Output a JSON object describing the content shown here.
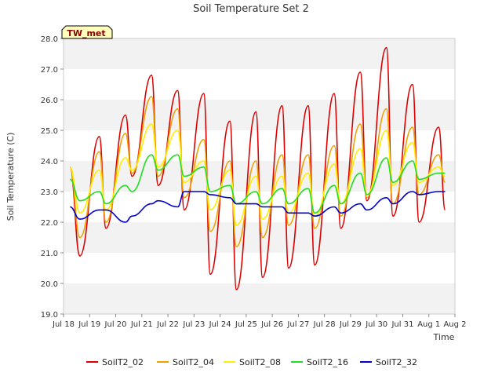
{
  "chart_data": {
    "type": "line",
    "title": "Soil Temperature Set 2",
    "xlabel": "Time",
    "ylabel": "Soil Temperature (C)",
    "station_badge": "TW_met",
    "ylim": [
      19.0,
      28.0
    ],
    "yticks": [
      "19.0",
      "20.0",
      "21.0",
      "22.0",
      "23.0",
      "24.0",
      "25.0",
      "26.0",
      "27.0",
      "28.0"
    ],
    "xlim": [
      "2024-07-18",
      "2024-08-02"
    ],
    "xticks": [
      "Jul 18",
      "Jul 19",
      "Jul 20",
      "Jul 21",
      "Jul 22",
      "Jul 23",
      "Jul 24",
      "Jul 25",
      "Jul 26",
      "Jul 27",
      "Jul 28",
      "Jul 29",
      "Jul 30",
      "Jul 31",
      "Aug 1",
      "Aug 2"
    ],
    "grid": "horizontal alternating bands",
    "legend_position": "bottom",
    "series": [
      {
        "name": "SoilT2_02",
        "color": "#dd0000",
        "points": [
          [
            "2024-07-18 06:00",
            23.8
          ],
          [
            "2024-07-18 15:00",
            20.9
          ],
          [
            "2024-07-19 09:00",
            24.8
          ],
          [
            "2024-07-19 15:00",
            21.8
          ],
          [
            "2024-07-20 09:00",
            25.5
          ],
          [
            "2024-07-20 15:00",
            23.5
          ],
          [
            "2024-07-21 09:00",
            26.8
          ],
          [
            "2024-07-21 15:00",
            23.2
          ],
          [
            "2024-07-22 09:00",
            26.3
          ],
          [
            "2024-07-22 15:00",
            22.4
          ],
          [
            "2024-07-23 09:00",
            26.2
          ],
          [
            "2024-07-23 15:00",
            20.3
          ],
          [
            "2024-07-24 09:00",
            25.3
          ],
          [
            "2024-07-24 15:00",
            19.8
          ],
          [
            "2024-07-25 09:00",
            25.6
          ],
          [
            "2024-07-25 15:00",
            20.2
          ],
          [
            "2024-07-26 09:00",
            25.8
          ],
          [
            "2024-07-26 15:00",
            20.5
          ],
          [
            "2024-07-27 09:00",
            25.8
          ],
          [
            "2024-07-27 15:00",
            20.6
          ],
          [
            "2024-07-28 09:00",
            26.2
          ],
          [
            "2024-07-28 15:00",
            21.8
          ],
          [
            "2024-07-29 09:00",
            26.9
          ],
          [
            "2024-07-29 15:00",
            22.7
          ],
          [
            "2024-07-30 09:00",
            27.7
          ],
          [
            "2024-07-30 15:00",
            22.2
          ],
          [
            "2024-07-31 09:00",
            26.5
          ],
          [
            "2024-07-31 15:00",
            22.0
          ],
          [
            "2024-08-01 09:00",
            25.1
          ],
          [
            "2024-08-01 15:00",
            22.4
          ]
        ]
      },
      {
        "name": "SoilT2_04",
        "color": "#f0a000",
        "points": [
          [
            "2024-07-18 06:00",
            23.8
          ],
          [
            "2024-07-18 15:00",
            21.5
          ],
          [
            "2024-07-19 09:00",
            24.3
          ],
          [
            "2024-07-19 15:00",
            22.0
          ],
          [
            "2024-07-20 09:00",
            24.9
          ],
          [
            "2024-07-20 15:00",
            23.6
          ],
          [
            "2024-07-21 09:00",
            26.1
          ],
          [
            "2024-07-21 15:00",
            23.5
          ],
          [
            "2024-07-22 09:00",
            25.7
          ],
          [
            "2024-07-22 15:00",
            22.8
          ],
          [
            "2024-07-23 09:00",
            24.7
          ],
          [
            "2024-07-23 15:00",
            21.7
          ],
          [
            "2024-07-24 09:00",
            24.0
          ],
          [
            "2024-07-24 15:00",
            21.2
          ],
          [
            "2024-07-25 09:00",
            24.0
          ],
          [
            "2024-07-25 15:00",
            21.5
          ],
          [
            "2024-07-26 09:00",
            24.2
          ],
          [
            "2024-07-26 15:00",
            21.9
          ],
          [
            "2024-07-27 09:00",
            24.2
          ],
          [
            "2024-07-27 15:00",
            21.8
          ],
          [
            "2024-07-28 09:00",
            24.5
          ],
          [
            "2024-07-28 15:00",
            22.2
          ],
          [
            "2024-07-29 09:00",
            25.2
          ],
          [
            "2024-07-29 15:00",
            22.8
          ],
          [
            "2024-07-30 09:00",
            25.7
          ],
          [
            "2024-07-30 15:00",
            22.6
          ],
          [
            "2024-07-31 09:00",
            25.1
          ],
          [
            "2024-07-31 15:00",
            22.9
          ],
          [
            "2024-08-01 09:00",
            24.2
          ],
          [
            "2024-08-01 15:00",
            23.3
          ]
        ]
      },
      {
        "name": "SoilT2_08",
        "color": "#ffee00",
        "points": [
          [
            "2024-07-18 06:00",
            23.8
          ],
          [
            "2024-07-18 15:00",
            22.3
          ],
          [
            "2024-07-19 09:00",
            23.7
          ],
          [
            "2024-07-19 15:00",
            22.4
          ],
          [
            "2024-07-20 09:00",
            24.1
          ],
          [
            "2024-07-20 15:00",
            23.7
          ],
          [
            "2024-07-21 09:00",
            25.2
          ],
          [
            "2024-07-21 15:00",
            23.8
          ],
          [
            "2024-07-22 09:00",
            25.0
          ],
          [
            "2024-07-22 15:00",
            23.3
          ],
          [
            "2024-07-23 09:00",
            24.0
          ],
          [
            "2024-07-23 15:00",
            22.4
          ],
          [
            "2024-07-24 09:00",
            23.7
          ],
          [
            "2024-07-24 15:00",
            21.9
          ],
          [
            "2024-07-25 09:00",
            23.5
          ],
          [
            "2024-07-25 15:00",
            22.1
          ],
          [
            "2024-07-26 09:00",
            23.5
          ],
          [
            "2024-07-26 15:00",
            22.3
          ],
          [
            "2024-07-27 09:00",
            23.6
          ],
          [
            "2024-07-27 15:00",
            22.2
          ],
          [
            "2024-07-28 09:00",
            23.9
          ],
          [
            "2024-07-28 15:00",
            22.6
          ],
          [
            "2024-07-29 09:00",
            24.4
          ],
          [
            "2024-07-29 15:00",
            22.9
          ],
          [
            "2024-07-30 09:00",
            25.0
          ],
          [
            "2024-07-30 15:00",
            23.2
          ],
          [
            "2024-07-31 09:00",
            24.6
          ],
          [
            "2024-07-31 15:00",
            23.3
          ],
          [
            "2024-08-01 09:00",
            23.8
          ],
          [
            "2024-08-01 15:00",
            23.5
          ]
        ]
      },
      {
        "name": "SoilT2_16",
        "color": "#22dd22",
        "points": [
          [
            "2024-07-18 06:00",
            23.4
          ],
          [
            "2024-07-18 15:00",
            22.7
          ],
          [
            "2024-07-19 09:00",
            23.0
          ],
          [
            "2024-07-19 15:00",
            22.6
          ],
          [
            "2024-07-20 09:00",
            23.2
          ],
          [
            "2024-07-20 15:00",
            23.0
          ],
          [
            "2024-07-21 09:00",
            24.2
          ],
          [
            "2024-07-21 15:00",
            23.7
          ],
          [
            "2024-07-22 09:00",
            24.2
          ],
          [
            "2024-07-22 15:00",
            23.5
          ],
          [
            "2024-07-23 09:00",
            23.8
          ],
          [
            "2024-07-23 15:00",
            23.0
          ],
          [
            "2024-07-24 09:00",
            23.2
          ],
          [
            "2024-07-24 15:00",
            22.6
          ],
          [
            "2024-07-25 09:00",
            23.0
          ],
          [
            "2024-07-25 15:00",
            22.6
          ],
          [
            "2024-07-26 09:00",
            23.1
          ],
          [
            "2024-07-26 15:00",
            22.6
          ],
          [
            "2024-07-27 09:00",
            23.1
          ],
          [
            "2024-07-27 15:00",
            22.3
          ],
          [
            "2024-07-28 09:00",
            23.2
          ],
          [
            "2024-07-28 15:00",
            22.6
          ],
          [
            "2024-07-29 09:00",
            23.6
          ],
          [
            "2024-07-29 15:00",
            22.9
          ],
          [
            "2024-07-30 09:00",
            24.1
          ],
          [
            "2024-07-30 15:00",
            23.3
          ],
          [
            "2024-07-31 09:00",
            24.0
          ],
          [
            "2024-07-31 15:00",
            23.4
          ],
          [
            "2024-08-01 09:00",
            23.6
          ],
          [
            "2024-08-01 15:00",
            23.6
          ]
        ]
      },
      {
        "name": "SoilT2_32",
        "color": "#0000cc",
        "points": [
          [
            "2024-07-18 06:00",
            22.5
          ],
          [
            "2024-07-18 15:00",
            22.1
          ],
          [
            "2024-07-19 09:00",
            22.4
          ],
          [
            "2024-07-19 15:00",
            22.4
          ],
          [
            "2024-07-20 09:00",
            22.0
          ],
          [
            "2024-07-20 15:00",
            22.2
          ],
          [
            "2024-07-21 09:00",
            22.6
          ],
          [
            "2024-07-21 15:00",
            22.7
          ],
          [
            "2024-07-22 09:00",
            22.5
          ],
          [
            "2024-07-22 15:00",
            23.0
          ],
          [
            "2024-07-23 09:00",
            23.0
          ],
          [
            "2024-07-23 15:00",
            22.9
          ],
          [
            "2024-07-24 09:00",
            22.8
          ],
          [
            "2024-07-24 15:00",
            22.6
          ],
          [
            "2024-07-25 09:00",
            22.6
          ],
          [
            "2024-07-25 15:00",
            22.5
          ],
          [
            "2024-07-26 09:00",
            22.5
          ],
          [
            "2024-07-26 15:00",
            22.3
          ],
          [
            "2024-07-27 09:00",
            22.3
          ],
          [
            "2024-07-27 15:00",
            22.2
          ],
          [
            "2024-07-28 09:00",
            22.5
          ],
          [
            "2024-07-28 15:00",
            22.3
          ],
          [
            "2024-07-29 09:00",
            22.6
          ],
          [
            "2024-07-29 15:00",
            22.4
          ],
          [
            "2024-07-30 09:00",
            22.8
          ],
          [
            "2024-07-30 15:00",
            22.6
          ],
          [
            "2024-07-31 09:00",
            23.0
          ],
          [
            "2024-07-31 15:00",
            22.9
          ],
          [
            "2024-08-01 09:00",
            23.0
          ],
          [
            "2024-08-01 15:00",
            23.0
          ]
        ]
      }
    ]
  }
}
